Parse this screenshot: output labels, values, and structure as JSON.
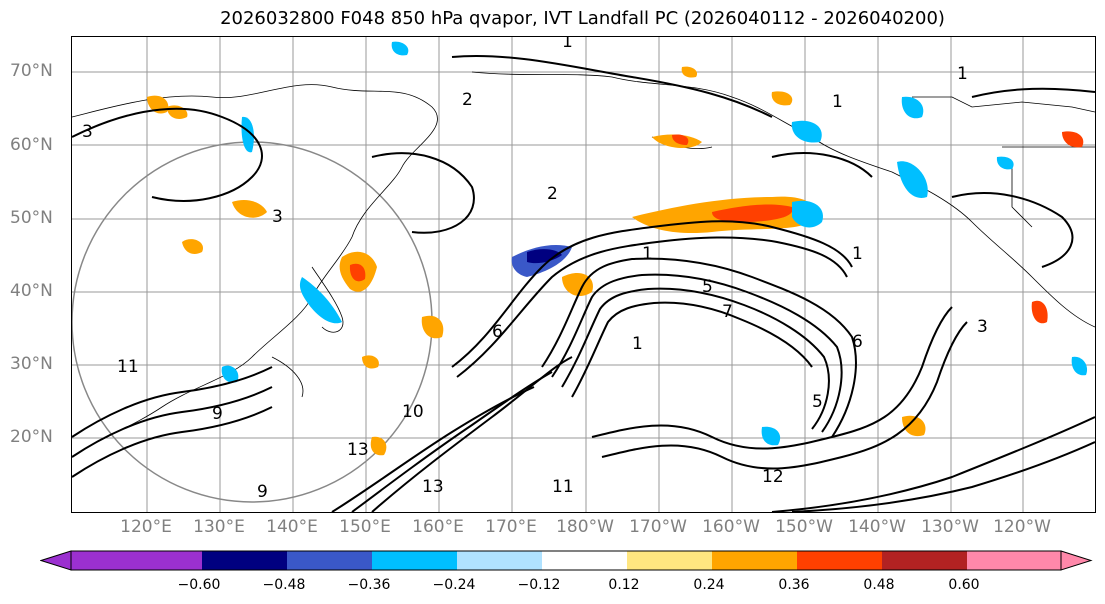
{
  "title": "2026032800 F048 850 hPa qvapor, IVT Landfall PC (2026040112 - 2026040200)",
  "map": {
    "lat_labels": [
      "70°N",
      "60°N",
      "50°N",
      "40°N",
      "30°N",
      "20°N"
    ],
    "lon_labels": [
      "120°E",
      "130°E",
      "140°E",
      "150°E",
      "160°E",
      "170°E",
      "180°W",
      "170°W",
      "160°W",
      "150°W",
      "140°W",
      "130°W",
      "120°W"
    ],
    "contour_labels": [
      "1",
      "2",
      "3",
      "1",
      "1",
      "2",
      "1",
      "1",
      "1",
      "5",
      "6",
      "11",
      "13",
      "9",
      "13",
      "11",
      "12",
      "3",
      "6",
      "3",
      "10",
      "9",
      "7",
      "5"
    ]
  },
  "colorbar": {
    "tick_labels": [
      "−0.60",
      "−0.48",
      "−0.36",
      "−0.24",
      "−0.12",
      "0.12",
      "0.24",
      "0.36",
      "0.48",
      "0.60"
    ],
    "colors": [
      "#9b30d0",
      "#000080",
      "#3a58c8",
      "#00bfff",
      "#b0e2ff",
      "#ffffff",
      "#ffe680",
      "#ffa500",
      "#ff4000",
      "#b22222",
      "#ff88aa",
      "#ff88aa"
    ],
    "extend_left_color": "#9b30d0",
    "extend_right_color": "#ff88aa"
  }
}
